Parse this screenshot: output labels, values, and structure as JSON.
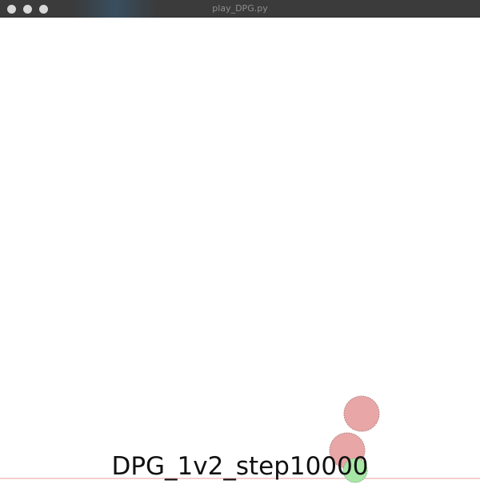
{
  "window": {
    "title": "play_DPG.py"
  },
  "scene": {
    "caption": "DPG_1v2_step10000",
    "colors": {
      "adversary": "#e9a6a6",
      "adversary_stroke": "#b88a8a",
      "agent": "#a6e7a6",
      "agent_stroke": "#8ab88a",
      "ground_line": "#e8a0a0"
    }
  }
}
